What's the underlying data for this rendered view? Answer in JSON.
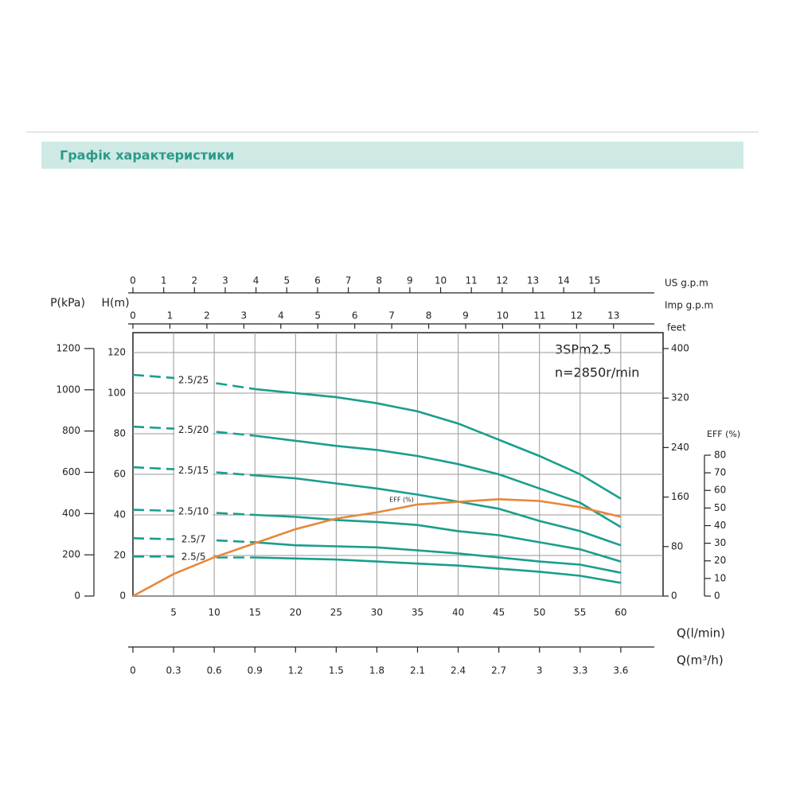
{
  "header": {
    "title": "Графік характеристики"
  },
  "chart_data": {
    "type": "line",
    "xlabel": "Q(l/min)",
    "x": [
      0,
      5,
      10,
      15,
      20,
      25,
      30,
      35,
      40,
      45,
      50,
      55,
      60
    ],
    "xlim": [
      0,
      65.2
    ],
    "xticks": [
      5,
      10,
      15,
      20,
      25,
      30,
      35,
      40,
      45,
      50,
      55,
      60
    ],
    "ylabel": "H(m)",
    "ylim": [
      0,
      129.8
    ],
    "yticks": [
      0,
      20,
      40,
      60,
      80,
      100,
      120
    ],
    "grid": true,
    "annotations": [
      "3SPm2.5",
      "n=2850r/min"
    ],
    "series": [
      {
        "name": "2.5/25",
        "color": "#1a9e8c",
        "values": [
          109,
          107.5,
          105,
          102,
          100,
          98,
          95,
          91,
          85,
          77,
          69,
          60,
          48
        ]
      },
      {
        "name": "2.5/20",
        "color": "#1a9e8c",
        "values": [
          83.5,
          82.5,
          81,
          79,
          76.5,
          74,
          72,
          69,
          65,
          60,
          53,
          46,
          34
        ]
      },
      {
        "name": "2.5/15",
        "color": "#1a9e8c",
        "values": [
          63.5,
          62.5,
          61,
          59.5,
          58,
          55.5,
          53,
          50,
          46.5,
          43,
          37,
          32,
          25
        ]
      },
      {
        "name": "2.5/10",
        "color": "#1a9e8c",
        "values": [
          42.5,
          42,
          41,
          40,
          39,
          37.5,
          36.5,
          35,
          32,
          30,
          26.5,
          23,
          17
        ]
      },
      {
        "name": "2.5/7",
        "color": "#1a9e8c",
        "values": [
          28.5,
          28,
          27.5,
          26.5,
          25,
          24.5,
          24,
          22.5,
          21,
          19,
          17,
          15.5,
          11.5
        ]
      },
      {
        "name": "2.5/5",
        "color": "#1a9e8c",
        "values": [
          19.5,
          19.5,
          19,
          19,
          18.5,
          18,
          17,
          16,
          15,
          13.5,
          12,
          10,
          6.5
        ]
      },
      {
        "name": "EFF (%)",
        "color": "#e8873a",
        "axis": "eff",
        "values": [
          0,
          12.5,
          22,
          30,
          38,
          44,
          47.5,
          52,
          53.5,
          55,
          54,
          50.5,
          45
        ]
      }
    ],
    "axes": {
      "pressure": {
        "label": "P(kPa)",
        "lim": [
          0,
          1277
        ],
        "ticks": [
          0,
          200,
          400,
          600,
          800,
          1000,
          1200
        ]
      },
      "feet": {
        "label": "feet",
        "lim": [
          0,
          425.7
        ],
        "ticks": [
          0,
          80,
          160,
          240,
          320,
          400
        ]
      },
      "eff": {
        "label": "EFF (%)",
        "lim": [
          0,
          149.6
        ],
        "ticks": [
          0,
          10,
          20,
          30,
          40,
          50,
          60,
          70,
          80
        ]
      },
      "us_gpm": {
        "label": "US g.p.m",
        "lim": [
          0,
          17.23
        ],
        "ticks": [
          0,
          1,
          2,
          3,
          4,
          5,
          6,
          7,
          8,
          9,
          10,
          11,
          12,
          13,
          14,
          15
        ]
      },
      "imp_gpm": {
        "label": "Imp g.p.m",
        "lim": [
          0,
          14.34
        ],
        "ticks": [
          0,
          1,
          2,
          3,
          4,
          5,
          6,
          7,
          8,
          9,
          10,
          11,
          12,
          13
        ]
      },
      "m3h": {
        "label": "Q(m³/h)",
        "lim": [
          0,
          3.912
        ],
        "ticks": [
          0,
          0.3,
          0.6,
          0.9,
          1.2,
          1.5,
          1.8,
          2.1,
          2.4,
          2.7,
          3,
          3.3,
          3.6
        ]
      }
    }
  }
}
